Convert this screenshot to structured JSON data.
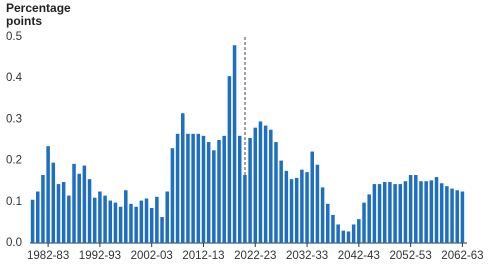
{
  "chart_data": {
    "type": "bar",
    "ylabel": "Percentage points",
    "categories": [
      null,
      null,
      null,
      "1982-83",
      null,
      null,
      null,
      null,
      null,
      null,
      null,
      null,
      null,
      "1992-93",
      null,
      null,
      null,
      null,
      null,
      null,
      null,
      null,
      null,
      "2002-03",
      null,
      null,
      null,
      null,
      null,
      null,
      null,
      null,
      null,
      "2012-13",
      null,
      null,
      null,
      null,
      null,
      null,
      null,
      null,
      null,
      "2022-23",
      null,
      null,
      null,
      null,
      null,
      null,
      null,
      null,
      null,
      "2032-33",
      null,
      null,
      null,
      null,
      null,
      null,
      null,
      null,
      null,
      "2042-43",
      null,
      null,
      null,
      null,
      null,
      null,
      null,
      null,
      null,
      "2052-53",
      null,
      null,
      null,
      null,
      null,
      null,
      null,
      null,
      null,
      "2062-63"
    ],
    "values": [
      0.105,
      0.125,
      0.165,
      0.235,
      0.195,
      0.143,
      0.148,
      0.115,
      0.192,
      0.168,
      0.188,
      0.155,
      0.11,
      0.125,
      0.115,
      0.103,
      0.098,
      0.088,
      0.128,
      0.095,
      0.088,
      0.103,
      0.108,
      0.085,
      0.112,
      0.063,
      0.125,
      0.23,
      0.265,
      0.315,
      0.265,
      0.265,
      0.265,
      0.26,
      0.245,
      0.225,
      0.25,
      0.26,
      0.405,
      0.48,
      0.26,
      0.165,
      0.255,
      0.28,
      0.295,
      0.285,
      0.275,
      0.245,
      0.2,
      0.175,
      0.155,
      0.158,
      0.178,
      0.172,
      0.222,
      0.19,
      0.135,
      0.095,
      0.068,
      0.045,
      0.03,
      0.028,
      0.045,
      0.058,
      0.098,
      0.118,
      0.143,
      0.143,
      0.148,
      0.148,
      0.143,
      0.143,
      0.15,
      0.165,
      0.165,
      0.15,
      0.15,
      0.152,
      0.16,
      0.145,
      0.138,
      0.132,
      0.128,
      0.125
    ],
    "color": "#1f6fc0",
    "ylim": [
      0,
      0.5
    ],
    "yticks": [
      {
        "value": 0,
        "label": "0.0"
      },
      0.1,
      0.2,
      0.3,
      0.4,
      0.5
    ],
    "grid": false
  }
}
